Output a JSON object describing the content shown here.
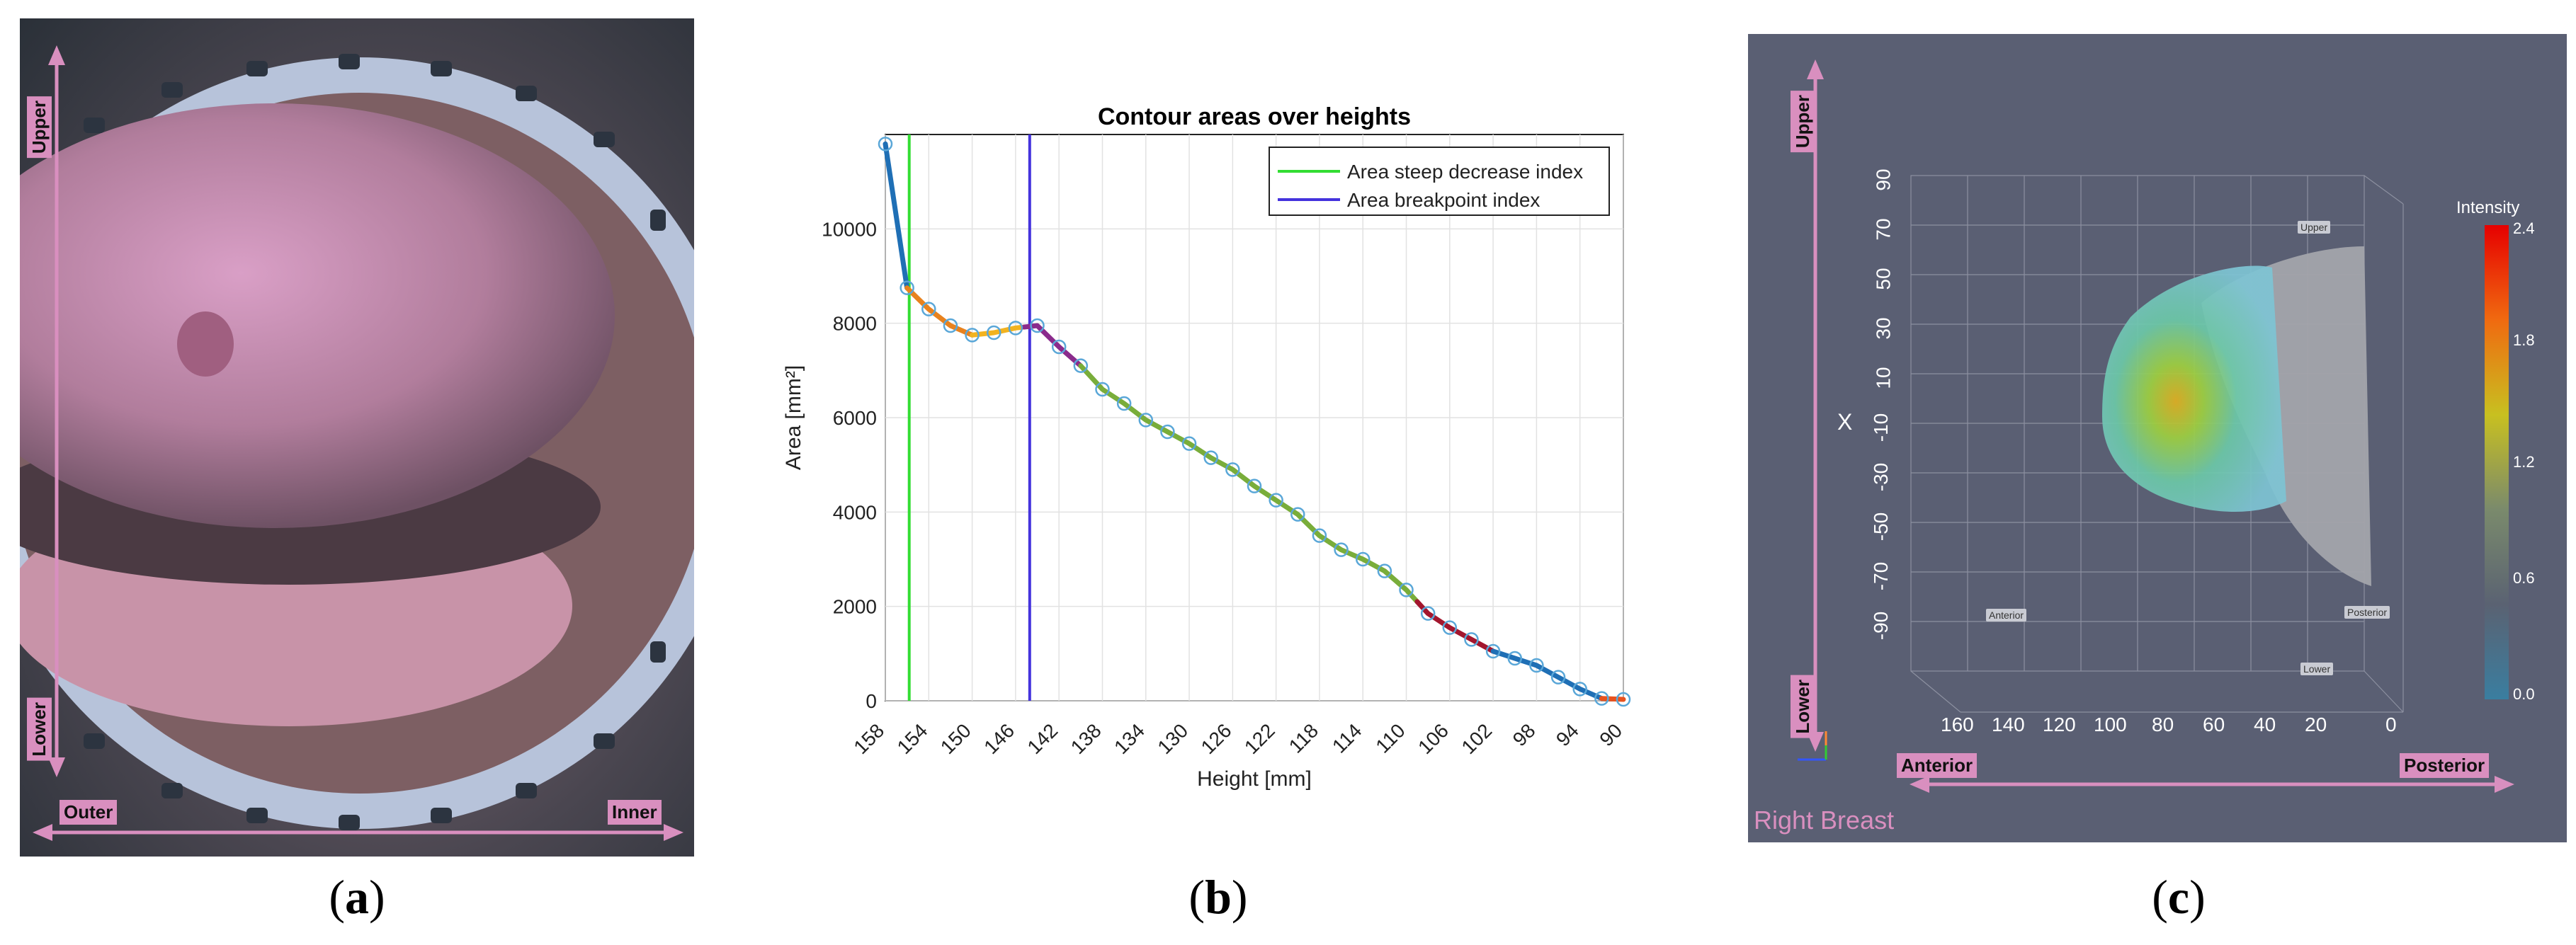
{
  "panel_a": {
    "labels": {
      "upper": "Upper",
      "lower": "Lower",
      "outer": "Outer",
      "inner": "Inner"
    },
    "caption_letter": "a"
  },
  "panel_b": {
    "caption_letter": "b"
  },
  "panel_c": {
    "labels": {
      "upper": "Upper",
      "lower": "Lower",
      "anterior": "Anterior",
      "posterior": "Posterior",
      "side": "Right Breast"
    },
    "box_labels": {
      "upper": "Upper",
      "anterior": "Anterior",
      "posterior": "Posterior",
      "lower": "Lower"
    },
    "axis_label_x": "X",
    "y_ticks": [
      "90",
      "70",
      "50",
      "30",
      "10",
      "-10",
      "-30",
      "-50",
      "-70",
      "-90"
    ],
    "x_ticks": [
      "160",
      "140",
      "120",
      "100",
      "80",
      "60",
      "40",
      "20",
      "0"
    ],
    "colorbar": {
      "title": "Intensity",
      "ticks": [
        "2.4",
        "1.8",
        "1.2",
        "0.6",
        "0.0"
      ]
    },
    "caption_letter": "c"
  },
  "colors": {
    "pink": "#d98fbf",
    "steep": "#33dd33",
    "breakpoint": "#4433dd",
    "marker": "#5aa7d8"
  },
  "chart_data": {
    "type": "line",
    "title": "Contour areas over heights",
    "xlabel": "Height [mm]",
    "ylabel": "Area [mm²]",
    "xlim": [
      158,
      90
    ],
    "ylim": [
      0,
      12000
    ],
    "x_ticks": [
      "158",
      "154",
      "150",
      "146",
      "142",
      "138",
      "134",
      "130",
      "126",
      "122",
      "118",
      "114",
      "110",
      "106",
      "102",
      "98",
      "94",
      "90"
    ],
    "y_ticks": [
      "0",
      "2000",
      "4000",
      "6000",
      "8000",
      "10000"
    ],
    "legend": {
      "position": "top-right",
      "entries": [
        "Area steep decrease index",
        "Area breakpoint index"
      ]
    },
    "vlines": [
      {
        "name": "Area steep decrease index",
        "x": 155.8
      },
      {
        "name": "Area breakpoint index",
        "x": 144.7
      }
    ],
    "points": {
      "x": [
        158,
        156,
        154,
        152,
        150,
        148,
        146,
        144,
        142,
        140,
        138,
        136,
        134,
        132,
        130,
        128,
        126,
        124,
        122,
        120,
        118,
        116,
        114,
        112,
        110,
        108,
        106,
        104,
        102,
        100,
        98,
        96,
        94,
        92,
        90
      ],
      "y": [
        11800,
        8750,
        8300,
        7950,
        7750,
        7800,
        7900,
        7950,
        7500,
        7100,
        6600,
        6300,
        5950,
        5700,
        5450,
        5150,
        4900,
        4550,
        4250,
        3950,
        3500,
        3200,
        3000,
        2750,
        2350,
        1850,
        1550,
        1300,
        1050,
        900,
        750,
        500,
        250,
        50,
        30
      ]
    },
    "segments": [
      {
        "x": [
          158,
          156
        ],
        "color": "#1f6fb5"
      },
      {
        "x": [
          156,
          150
        ],
        "color": "#e8821e"
      },
      {
        "x": [
          150,
          145.2
        ],
        "color": "#f2b320"
      },
      {
        "x": [
          145.2,
          140
        ],
        "color": "#8a2b8c"
      },
      {
        "x": [
          140,
          109
        ],
        "color": "#79ad3a"
      },
      {
        "x": [
          109,
          102
        ],
        "color": "#a3162e"
      },
      {
        "x": [
          102,
          92
        ],
        "color": "#1f6fb5"
      },
      {
        "x": [
          92,
          90
        ],
        "color": "#e8521e"
      }
    ]
  }
}
